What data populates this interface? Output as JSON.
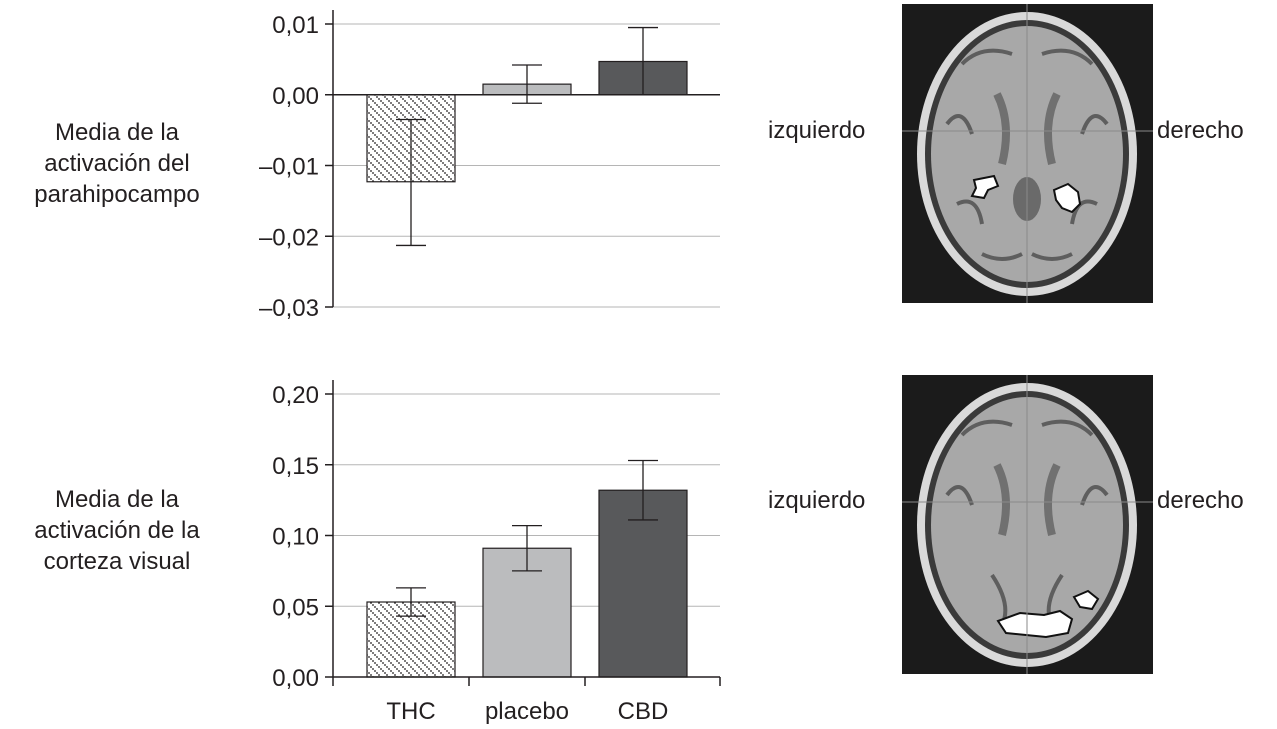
{
  "colors": {
    "axis": "#231f20",
    "grid": "#b5b5b5",
    "THC_fill": "#ffffff",
    "placebo_fill": "#bbbcbe",
    "CBD_fill": "#58595b",
    "brain_bg": "#1b1b1b"
  },
  "chart_data": [
    {
      "type": "bar",
      "ylabel": [
        "Media de la",
        "activación del",
        "parahipocampo"
      ],
      "categories": [
        "THC",
        "placebo",
        "CBD"
      ],
      "values": [
        -0.0123,
        0.0015,
        0.0047
      ],
      "error_low": [
        -0.0213,
        -0.0012,
        0.0
      ],
      "error_high": [
        -0.0035,
        0.0042,
        0.0095
      ],
      "ylim": [
        -0.03,
        0.01
      ],
      "yticks": [
        0.01,
        0.0,
        -0.01,
        -0.02,
        -0.03
      ],
      "ytick_labels": [
        "0,01",
        "0,00",
        "–0,01",
        "–0,02",
        "–0,03"
      ],
      "grid": true,
      "show_category_labels": false,
      "fill_patterns": [
        "diagonal-dots",
        "solid",
        "solid"
      ]
    },
    {
      "type": "bar",
      "ylabel": [
        "Media de la",
        "activación de la",
        "corteza visual"
      ],
      "categories": [
        "THC",
        "placebo",
        "CBD"
      ],
      "values": [
        0.053,
        0.091,
        0.132
      ],
      "error_low": [
        0.043,
        0.075,
        0.111
      ],
      "error_high": [
        0.063,
        0.107,
        0.153
      ],
      "ylim": [
        0.0,
        0.2
      ],
      "yticks": [
        0.2,
        0.15,
        0.1,
        0.05,
        0.0
      ],
      "ytick_labels": [
        "0,20",
        "0,15",
        "0,10",
        "0,05",
        "0,00"
      ],
      "grid": true,
      "show_category_labels": true,
      "fill_patterns": [
        "diagonal-dots",
        "solid",
        "solid"
      ]
    }
  ],
  "brain_panels": [
    {
      "left_label": "izquierdo",
      "right_label": "derecho",
      "region": "parahipocampo"
    },
    {
      "left_label": "izquierdo",
      "right_label": "derecho",
      "region": "corteza visual"
    }
  ]
}
